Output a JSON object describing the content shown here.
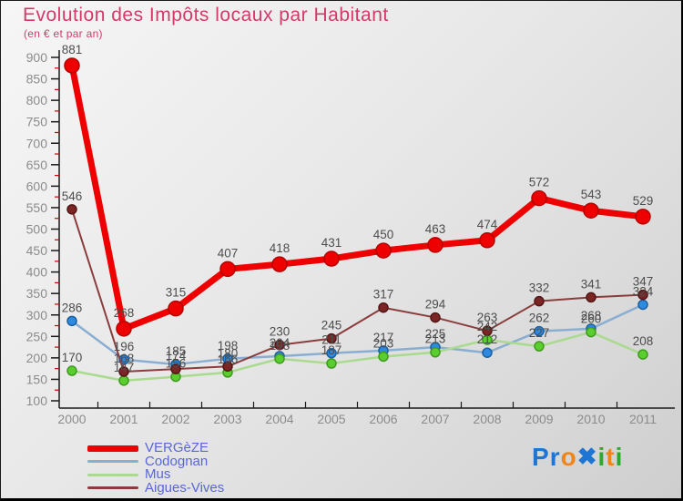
{
  "title": "Evolution des Impôts locaux par Habitant",
  "subtitle": "(en € et par an)",
  "title_color": "#d23a6a",
  "chart_data": {
    "type": "line",
    "x": [
      2000,
      2001,
      2002,
      2003,
      2004,
      2005,
      2006,
      2007,
      2008,
      2009,
      2010,
      2011
    ],
    "ylim": [
      100,
      900
    ],
    "ytick_major": 50,
    "ytick_minor": 25,
    "grid": false,
    "legend_position": "bottom-left",
    "value_labels": true,
    "series": [
      {
        "name": "VERGèZE",
        "values": [
          881,
          268,
          315,
          407,
          418,
          431,
          450,
          463,
          474,
          572,
          543,
          529
        ],
        "line_color": "#ee0000",
        "dot_color": "#ee0000",
        "dot_stroke": "#b50000",
        "line_width": 7,
        "dot_radius": 8
      },
      {
        "name": "Codognan",
        "values": [
          286,
          196,
          185,
          198,
          204,
          211,
          217,
          225,
          212,
          262,
          268,
          324
        ],
        "line_color": "#8aaed2",
        "dot_color": "#2e8ae0",
        "dot_stroke": "#1c5f9e",
        "line_width": 2.5,
        "dot_radius": 5
      },
      {
        "name": "Mus",
        "values": [
          170,
          147,
          156,
          166,
          198,
          187,
          203,
          213,
          242,
          227,
          260,
          208
        ],
        "line_color": "#a9da8d",
        "dot_color": "#5bce2f",
        "dot_stroke": "#3f9a1f",
        "line_width": 2.5,
        "dot_radius": 5
      },
      {
        "name": "Aigues-Vives",
        "values": [
          546,
          168,
          174,
          180,
          230,
          245,
          317,
          294,
          263,
          332,
          341,
          347
        ],
        "line_color": "#8b3d3d",
        "dot_color": "#7b2525",
        "dot_stroke": "#531616",
        "line_width": 2,
        "dot_radius": 5
      }
    ],
    "axis_color": "#1a1a1a",
    "tick_label_color": "#8c8c8c",
    "minor_tick_color": "#cc0000",
    "value_label_color": "#4d4d4d"
  },
  "legend": {
    "text_color": "#5b66d8"
  },
  "logo": {
    "letters": [
      {
        "ch": "P",
        "color": "#1f76d2"
      },
      {
        "ch": "r",
        "color": "#1f76d2"
      },
      {
        "ch": "o",
        "color": "#f08519"
      },
      {
        "ch": "✖",
        "color": "#1f76d2"
      },
      {
        "ch": "i",
        "color": "#2ca82c"
      },
      {
        "ch": "t",
        "color": "#f08519"
      },
      {
        "ch": "i",
        "color": "#2ca82c"
      }
    ]
  }
}
